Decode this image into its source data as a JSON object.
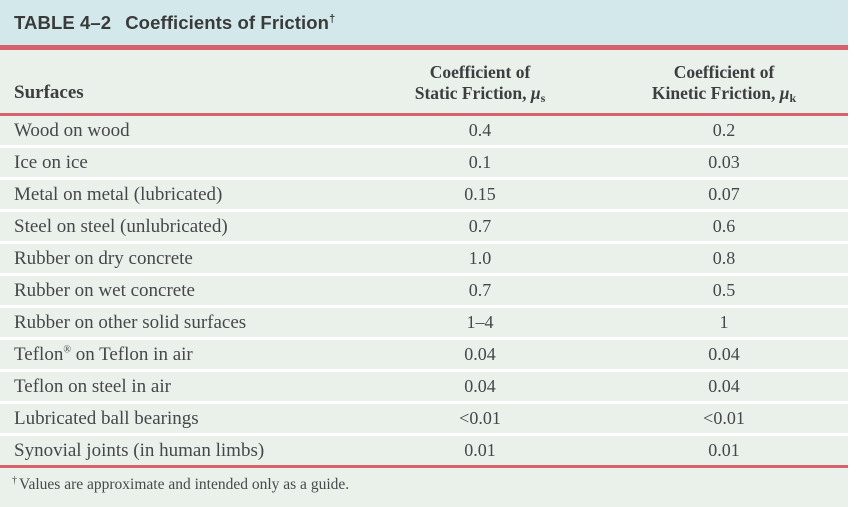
{
  "accents": {
    "title_bar_bg": "#d2e8ea",
    "body_bg": "#e9f1ea",
    "rule_red": "#d5626c",
    "title_text_color": "#3a3a3a",
    "body_text_color": "#46474a"
  },
  "title": {
    "label": "TABLE 4–2",
    "text": "Coefficients of Friction",
    "sup": "†"
  },
  "table": {
    "columns": {
      "surfaces": "Surfaces",
      "static": {
        "line1": "Coefficient of",
        "line2": "Static Friction, ",
        "symbol": "μ",
        "sub": "s"
      },
      "kinetic": {
        "line1": "Coefficient of",
        "line2": "Kinetic Friction, ",
        "symbol": "μ",
        "sub": "k"
      }
    },
    "rows": [
      {
        "surface_pre": "Wood on wood",
        "surface_sup": "",
        "surface_post": "",
        "static": "0.4",
        "kinetic": "0.2"
      },
      {
        "surface_pre": "Ice on ice",
        "surface_sup": "",
        "surface_post": "",
        "static": "0.1",
        "kinetic": "0.03"
      },
      {
        "surface_pre": "Metal on metal (lubricated)",
        "surface_sup": "",
        "surface_post": "",
        "static": "0.15",
        "kinetic": "0.07"
      },
      {
        "surface_pre": "Steel on steel (unlubricated)",
        "surface_sup": "",
        "surface_post": "",
        "static": "0.7",
        "kinetic": "0.6"
      },
      {
        "surface_pre": "Rubber on dry concrete",
        "surface_sup": "",
        "surface_post": "",
        "static": "1.0",
        "kinetic": "0.8"
      },
      {
        "surface_pre": "Rubber on wet concrete",
        "surface_sup": "",
        "surface_post": "",
        "static": "0.7",
        "kinetic": "0.5"
      },
      {
        "surface_pre": "Rubber on other solid surfaces",
        "surface_sup": "",
        "surface_post": "",
        "static": "1–4",
        "kinetic": "1"
      },
      {
        "surface_pre": "Teflon",
        "surface_sup": "®",
        "surface_post": " on Teflon in air",
        "static": "0.04",
        "kinetic": "0.04"
      },
      {
        "surface_pre": "Teflon on steel in air",
        "surface_sup": "",
        "surface_post": "",
        "static": "0.04",
        "kinetic": "0.04"
      },
      {
        "surface_pre": "Lubricated ball bearings",
        "surface_sup": "",
        "surface_post": "",
        "static": "<0.01",
        "kinetic": "<0.01"
      },
      {
        "surface_pre": "Synovial joints (in human limbs)",
        "surface_sup": "",
        "surface_post": "",
        "static": "0.01",
        "kinetic": "0.01"
      }
    ]
  },
  "footnote": {
    "sup": "†",
    "text": "Values are approximate and intended only as a guide."
  }
}
